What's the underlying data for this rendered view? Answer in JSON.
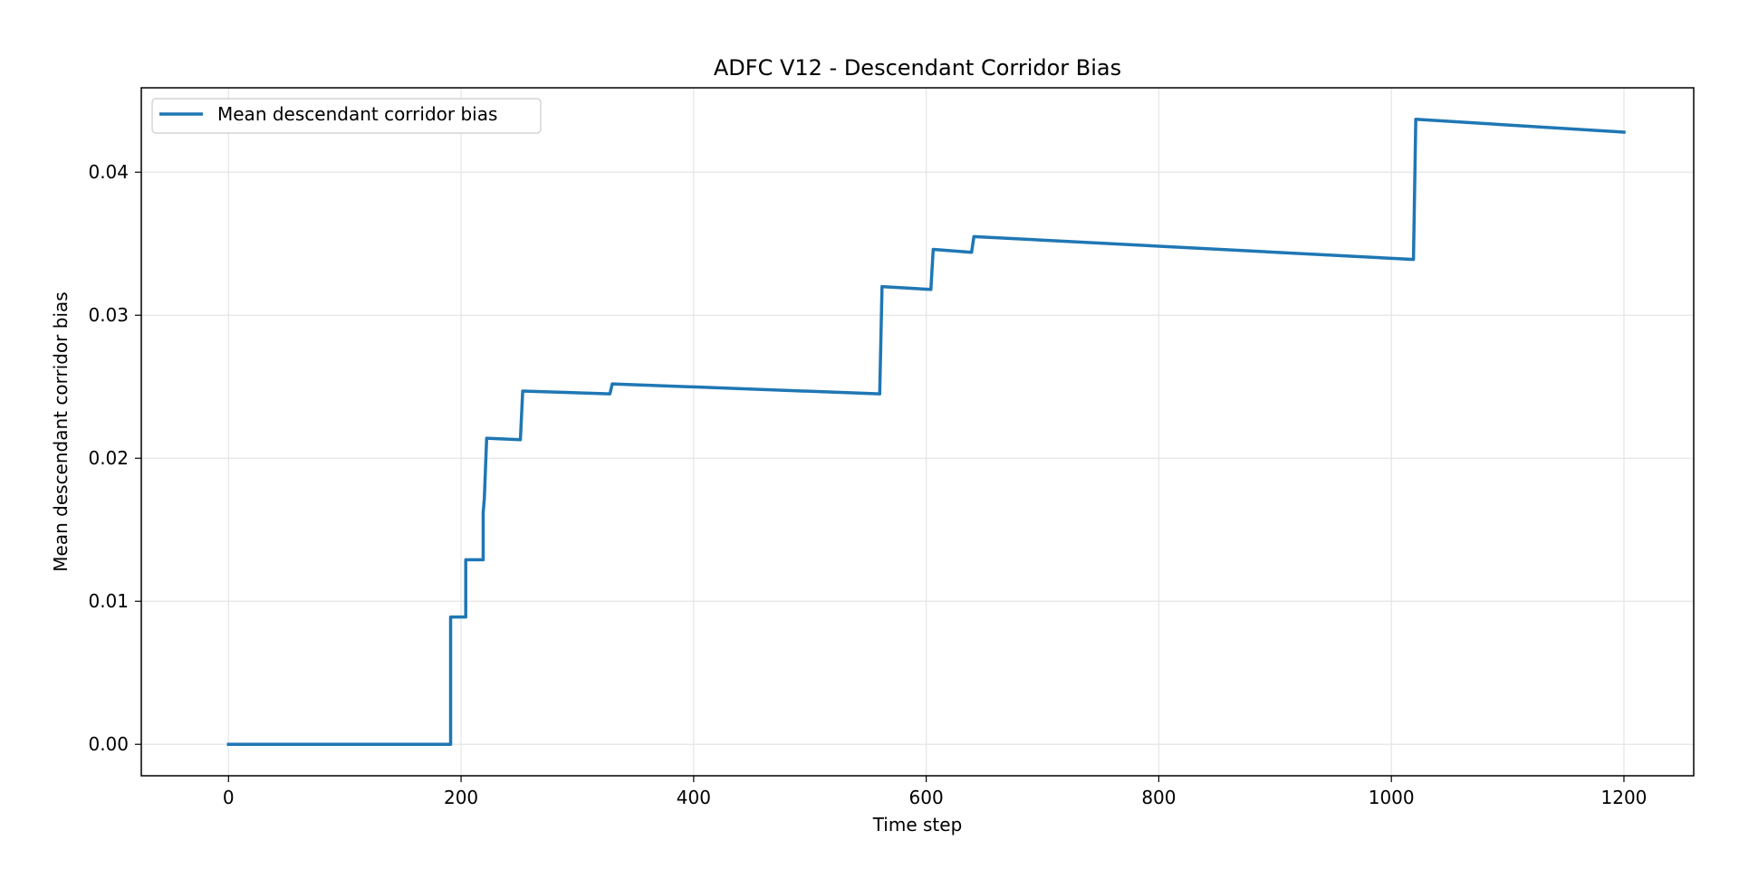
{
  "chart_data": {
    "type": "line",
    "title": "ADFC V12 - Descendant Corridor Bias",
    "xlabel": "Time step",
    "ylabel": "Mean descendant corridor bias",
    "xlim": [
      -75,
      1260
    ],
    "ylim": [
      -0.0022,
      0.0459
    ],
    "xticks": [
      0,
      200,
      400,
      600,
      800,
      1000,
      1200
    ],
    "xtick_labels": [
      "0",
      "200",
      "400",
      "600",
      "800",
      "1000",
      "1200"
    ],
    "yticks": [
      0.0,
      0.01,
      0.02,
      0.03,
      0.04
    ],
    "ytick_labels": [
      "0.00",
      "0.01",
      "0.02",
      "0.03",
      "0.04"
    ],
    "grid": true,
    "legend_position": "upper-left",
    "colors": {
      "series": "#1f77b4",
      "grid": "#e5e5e5",
      "axes": "#000000"
    },
    "series": [
      {
        "name": "Mean descendant corridor bias",
        "x": [
          0,
          191,
          191,
          204,
          204,
          219,
          219,
          220,
          220,
          222,
          222,
          251,
          251,
          253,
          253,
          328,
          328,
          330,
          330,
          560,
          560,
          562,
          562,
          604,
          604,
          606,
          606,
          639,
          639,
          641,
          641,
          1019,
          1019,
          1021,
          1021,
          1200
        ],
        "y": [
          0.0,
          0.0,
          0.0089,
          0.0089,
          0.0129,
          0.0129,
          0.0162,
          0.0172,
          0.0172,
          0.0214,
          0.0214,
          0.0213,
          0.0213,
          0.0247,
          0.0247,
          0.0245,
          0.0245,
          0.0252,
          0.0252,
          0.0245,
          0.0245,
          0.032,
          0.032,
          0.0318,
          0.0318,
          0.0346,
          0.0346,
          0.0344,
          0.0344,
          0.0355,
          0.0355,
          0.0339,
          0.0339,
          0.0437,
          0.0437,
          0.0428
        ]
      }
    ]
  }
}
